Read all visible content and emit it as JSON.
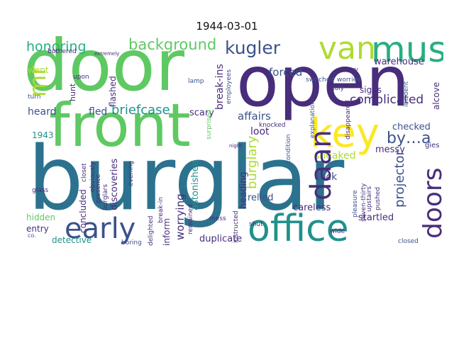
{
  "title": "1944-03-01",
  "words": {
    "burglar": "burglar",
    "door": "door",
    "front": "front",
    "open": "open",
    "office": "office",
    "van": "van",
    "must": "must",
    "key": "key",
    "mr": "mr",
    "daan": "daan",
    "doors": "doors",
    "early": "early",
    "background": "background",
    "kugler": "kugler",
    "byaa": "by…a",
    "briefcase": "briefcase",
    "honoring": "honoring",
    "complicated": "complicated",
    "projector": "projector",
    "warehouse": "warehouse",
    "forced": "forced",
    "burglary": "burglary",
    "breakins": "break-ins",
    "affairs": "affairs",
    "checked": "checked",
    "heard": "heard",
    "fled": "fled",
    "scary": "scary",
    "sneaked": "sneaked",
    "messy": "messy",
    "loot": "loot",
    "lock": "lock",
    "relied": "relied",
    "careless": "careless",
    "startled": "startled",
    "duplicate": "duplicate",
    "detective": "detective",
    "entry": "entry",
    "hidden": "hidden",
    "went": "went",
    "hunt": "hunt",
    "worrying": "worrying",
    "astonished": "astonished",
    "discoveries": "discoveries",
    "concluded": "concluded",
    "inform": "inform",
    "heading": "heading",
    "signs": "signs",
    "alcove": "alcove",
    "flashed": "flashed",
    "year1943": "1943",
    "switched": "switched",
    "worried": "worried",
    "hurry": "hurry",
    "bothered": "bothered",
    "upon": "upon",
    "turn": "turn",
    "lamp": "lamp",
    "july": "july",
    "explanation": "explanation",
    "disappeared": "disappeared",
    "incident": "incident",
    "upstairs": "upstairs",
    "pushed": "pushed",
    "pleasure": "pleasure",
    "seventhirty": "seven-thirty",
    "mess": "mess",
    "shut": "shut",
    "wide": "wide",
    "boring": "boring",
    "closed": "closed",
    "instructed": "instructed",
    "delighted": "delighted",
    "breakin": "break-in",
    "evening": "evening",
    "presence": "presence",
    "closet": "closet",
    "obviously": "obviously",
    "burglars": "burglars",
    "glass": "glass",
    "co": "co.",
    "employees": "employees",
    "knocked": "knocked",
    "condition": "condition",
    "surprised": "surprised",
    "remained": "remained",
    "extremely": "extremely",
    "night": "night",
    "gies": "gies"
  },
  "colors": {
    "dark_purple": "#440154",
    "purple": "#472d7b",
    "indigo": "#3b528b",
    "blue": "#2c728e",
    "teal": "#21918c",
    "green_teal": "#28ae80",
    "green": "#5ec962",
    "lime": "#addc30",
    "yellow": "#fde725"
  }
}
